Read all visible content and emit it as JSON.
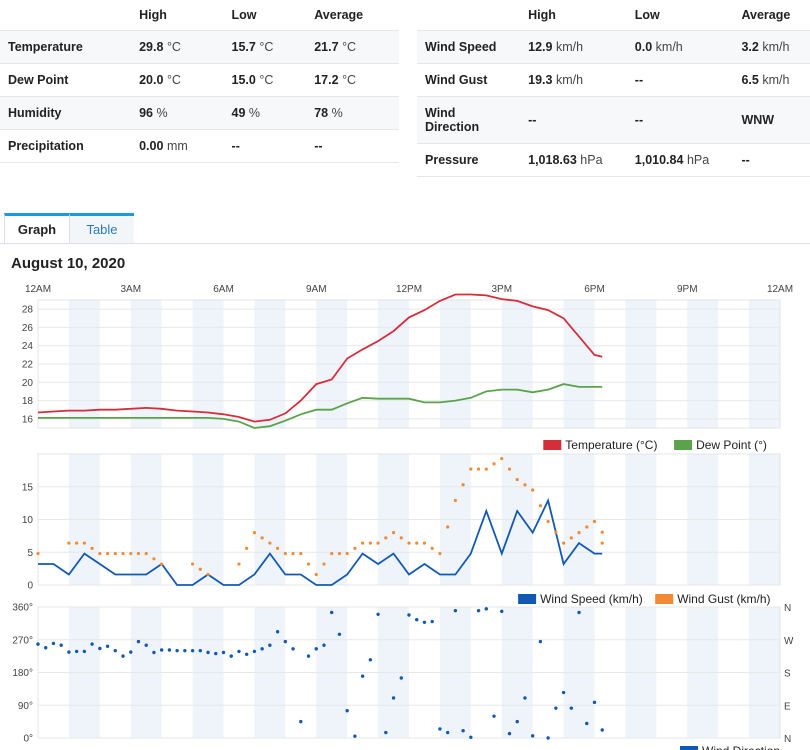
{
  "left_table": {
    "headers": [
      "",
      "High",
      "Low",
      "Average"
    ],
    "rows": [
      {
        "label": "Temperature",
        "high": "29.8",
        "high_u": "°C",
        "low": "15.7",
        "low_u": "°C",
        "avg": "21.7",
        "avg_u": "°C"
      },
      {
        "label": "Dew Point",
        "high": "20.0",
        "high_u": "°C",
        "low": "15.0",
        "low_u": "°C",
        "avg": "17.2",
        "avg_u": "°C"
      },
      {
        "label": "Humidity",
        "high": "96",
        "high_u": "%",
        "low": "49",
        "low_u": "%",
        "avg": "78",
        "avg_u": "%"
      },
      {
        "label": "Precipitation",
        "high": "0.00",
        "high_u": "mm",
        "low": "--",
        "low_u": "",
        "avg": "--",
        "avg_u": ""
      }
    ]
  },
  "right_table": {
    "headers": [
      "",
      "High",
      "Low",
      "Average"
    ],
    "rows": [
      {
        "label": "Wind Speed",
        "high": "12.9",
        "high_u": "km/h",
        "low": "0.0",
        "low_u": "km/h",
        "avg": "3.2",
        "avg_u": "km/h"
      },
      {
        "label": "Wind Gust",
        "high": "19.3",
        "high_u": "km/h",
        "low": "--",
        "low_u": "",
        "avg": "6.5",
        "avg_u": "km/h"
      },
      {
        "label": "Wind Direction",
        "high": "--",
        "high_u": "",
        "low": "--",
        "low_u": "",
        "avg": "WNW",
        "avg_u": ""
      },
      {
        "label": "Pressure",
        "high": "1,018.63",
        "high_u": "hPa",
        "low": "1,010.84",
        "low_u": "hPa",
        "avg": "--",
        "avg_u": ""
      }
    ]
  },
  "tabs": {
    "graph": "Graph",
    "table": "Table"
  },
  "chart_title": "August 10, 2020",
  "colors": {
    "temperature": "#d62d3a",
    "dew_point": "#5aa34a",
    "wind_speed": "#1259b3",
    "wind_gust": "#f08a34",
    "wind_dir": "#1259b3",
    "band": "#eef4fa"
  },
  "chart_data": [
    {
      "type": "line",
      "x_tick_labels": [
        "12AM",
        "3AM",
        "6AM",
        "9AM",
        "12PM",
        "3PM",
        "6PM",
        "9PM",
        "12AM"
      ],
      "ylim": [
        15,
        29
      ],
      "y_ticks": [
        16,
        18,
        20,
        22,
        24,
        26,
        28
      ],
      "x_hours": [
        0,
        0.5,
        1,
        1.5,
        2,
        2.5,
        3,
        3.5,
        4,
        4.5,
        5,
        5.5,
        6,
        6.5,
        7,
        7.5,
        8,
        8.5,
        9,
        9.5,
        10,
        10.5,
        11,
        11.5,
        12,
        12.5,
        13,
        13.5,
        14,
        14.5,
        15,
        15.5,
        16,
        16.5,
        17,
        17.5,
        18,
        18.25
      ],
      "series": [
        {
          "name": "Temperature (°C)",
          "values": [
            16.7,
            16.8,
            16.9,
            16.9,
            17.0,
            17.0,
            17.1,
            17.2,
            17.1,
            16.9,
            16.8,
            16.7,
            16.5,
            16.2,
            15.7,
            15.9,
            16.6,
            18.0,
            19.8,
            20.3,
            22.6,
            23.6,
            24.5,
            25.6,
            27.1,
            27.9,
            28.9,
            29.6,
            29.6,
            29.5,
            29.1,
            28.9,
            28.3,
            27.9,
            27.0,
            25.0,
            23.0,
            22.8
          ]
        },
        {
          "name": "Dew Point (°)",
          "values": [
            16.1,
            16.1,
            16.1,
            16.1,
            16.1,
            16.1,
            16.1,
            16.1,
            16.1,
            16.1,
            16.1,
            16.1,
            16.0,
            15.7,
            15.0,
            15.2,
            15.8,
            16.5,
            17.0,
            17.0,
            17.7,
            18.3,
            18.2,
            18.2,
            18.2,
            17.8,
            17.8,
            18.0,
            18.3,
            19.0,
            19.2,
            19.2,
            18.9,
            19.2,
            19.8,
            19.5,
            19.5,
            19.5
          ]
        }
      ]
    },
    {
      "type": "line",
      "ylim": [
        0,
        20
      ],
      "y_ticks": [
        0,
        5,
        10,
        15
      ],
      "x_hours": [
        0,
        0.5,
        1,
        1.5,
        2,
        2.5,
        3,
        3.5,
        4,
        4.5,
        5,
        5.5,
        6,
        6.5,
        7,
        7.5,
        8,
        8.5,
        9,
        9.5,
        10,
        10.5,
        11,
        11.5,
        12,
        12.5,
        13,
        13.5,
        14,
        14.5,
        15,
        15.5,
        16,
        16.5,
        17,
        17.5,
        18,
        18.25
      ],
      "series": [
        {
          "name": "Wind Speed (km/h)",
          "values": [
            3.2,
            3.2,
            1.6,
            4.8,
            3.2,
            1.6,
            1.6,
            1.6,
            3.2,
            0.0,
            0.0,
            1.6,
            0.0,
            0.0,
            1.6,
            4.8,
            1.6,
            1.6,
            0.0,
            0.0,
            1.6,
            4.8,
            3.2,
            4.8,
            1.6,
            3.2,
            1.6,
            1.6,
            4.8,
            11.3,
            4.8,
            11.3,
            8.0,
            12.9,
            3.2,
            6.4,
            4.8,
            4.8
          ]
        },
        {
          "name": "Wind Gust (km/h)",
          "values": [
            4.8,
            null,
            6.4,
            6.4,
            4.8,
            4.8,
            4.8,
            4.8,
            3.2,
            null,
            3.2,
            1.6,
            null,
            3.2,
            8.0,
            6.4,
            4.8,
            4.8,
            1.6,
            4.8,
            4.8,
            6.4,
            6.4,
            8.0,
            6.4,
            6.4,
            4.8,
            12.9,
            17.7,
            17.7,
            19.3,
            16.1,
            14.5,
            9.7,
            6.4,
            8.0,
            9.7,
            6.4
          ]
        }
      ]
    },
    {
      "type": "scatter",
      "ylim": [
        0,
        360
      ],
      "y_ticks": [
        0,
        90,
        180,
        270,
        360
      ],
      "y_tick_labels": [
        "0°",
        "90°",
        "180°",
        "270°",
        "360°"
      ],
      "right_labels": [
        "N",
        "E",
        "S",
        "W",
        "N"
      ],
      "x_hours": [
        0,
        0.25,
        0.5,
        0.75,
        1,
        1.25,
        1.5,
        1.75,
        2,
        2.25,
        2.5,
        2.75,
        3,
        3.25,
        3.5,
        3.75,
        4,
        4.25,
        4.5,
        4.75,
        5,
        5.25,
        5.5,
        5.75,
        6,
        6.25,
        6.5,
        6.75,
        7,
        7.25,
        7.5,
        7.75,
        8,
        8.25,
        8.5,
        8.75,
        9,
        9.25,
        9.5,
        9.75,
        10,
        10.25,
        10.5,
        10.75,
        11,
        11.25,
        11.5,
        11.75,
        12,
        12.25,
        12.5,
        12.75,
        13,
        13.25,
        13.5,
        13.75,
        14,
        14.25,
        14.5,
        14.75,
        15,
        15.25,
        15.5,
        15.75,
        16,
        16.25,
        16.5,
        16.75,
        17,
        17.25,
        17.5,
        17.75,
        18,
        18.25
      ],
      "series": [
        {
          "name": "Wind Direction",
          "values": [
            258,
            248,
            260,
            255,
            236,
            238,
            238,
            258,
            246,
            252,
            240,
            225,
            236,
            265,
            255,
            235,
            242,
            242,
            240,
            240,
            240,
            240,
            235,
            232,
            235,
            225,
            238,
            230,
            238,
            245,
            255,
            292,
            265,
            245,
            45,
            225,
            245,
            255,
            345,
            285,
            75,
            5,
            170,
            215,
            340,
            15,
            110,
            165,
            338,
            325,
            318,
            320,
            25,
            15,
            350,
            20,
            2,
            350,
            355,
            60,
            348,
            12,
            45,
            110,
            6,
            265,
            0,
            82,
            125,
            82,
            345,
            40,
            98,
            22
          ]
        }
      ]
    }
  ],
  "legends": {
    "temp": [
      "Temperature (°C)",
      "Dew Point (°)"
    ],
    "wind": [
      "Wind Speed (km/h)",
      "Wind Gust (km/h)"
    ],
    "dir": "Wind Direction"
  }
}
